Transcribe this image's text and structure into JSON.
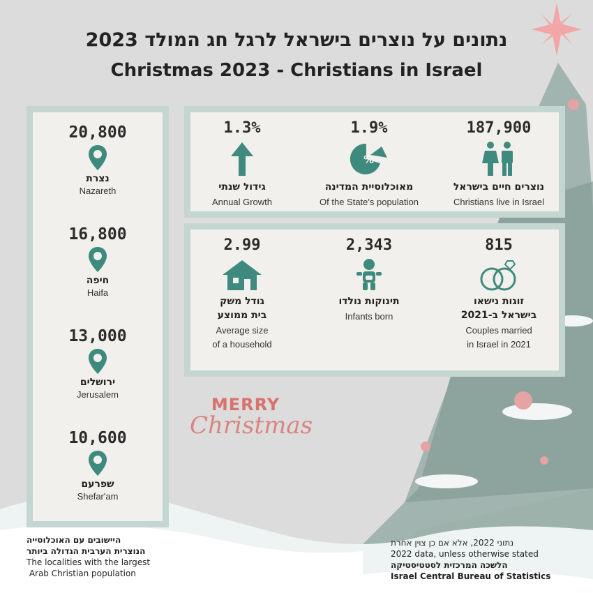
{
  "title": {
    "hebrew": "נתונים על נוצרים בישראל לרגל חג המולד 2023",
    "english": "Christmas 2023 - Christians in Israel"
  },
  "localities": [
    {
      "population": "20,800",
      "name_he": "נצרת",
      "name_en": "Nazareth"
    },
    {
      "population": "16,800",
      "name_he": "חיפה",
      "name_en": "Haifa"
    },
    {
      "population": "13,000",
      "name_he": "ירושלים",
      "name_en": "Jerusalem"
    },
    {
      "population": "10,600",
      "name_he": "שפרעם",
      "name_en": "Shefar'am"
    }
  ],
  "stats_top": [
    {
      "value": "187,900",
      "label_he": "נוצרים חיים בישראל",
      "label_en": "Christians live in Israel",
      "icon": "people-icon"
    },
    {
      "value": "1.9%",
      "label_he": "מאוכלוסיית המדינה",
      "label_en": "Of the State's population",
      "icon": "pie-percent-icon"
    },
    {
      "value": "1.3%",
      "label_he": "גידול שנתי",
      "label_en": "Annual Growth",
      "icon": "arrow-up-icon"
    }
  ],
  "stats_bottom": [
    {
      "value": "815",
      "label_he_1": "זוגות נישאו",
      "label_he_2": "בישראל ב-2021",
      "label_en_1": "Couples married",
      "label_en_2": "in Israel in 2021",
      "icon": "rings-icon"
    },
    {
      "value": "2,343",
      "label_he_1": "תינוקות נולדו",
      "label_en_1": "Infants  born",
      "icon": "baby-icon"
    },
    {
      "value": "2.99",
      "label_he_1": "גודל משק",
      "label_he_2": "בית ממוצע",
      "label_en_1": "Average size",
      "label_en_2": "of a household",
      "icon": "house-icon"
    }
  ],
  "greeting": {
    "line1": "MERRY",
    "line2": "Christmas"
  },
  "footer_left": {
    "he_1": "היישובים עם האוכלוסייה",
    "he_2": "הנוצרית הערבית הגדולה ביותר",
    "en_1": "The localities with the largest",
    "en_2": " Arab Christian population"
  },
  "footer_right": {
    "he_note": "נתוני 2022, אלא אם כן צוין אחרת",
    "en_note": "2022 data, unless otherwise stated",
    "he_source": "הלשכה המרכזית לסטטיסטיקה",
    "en_source": "Israel Central Bureau of Statistics"
  },
  "colors": {
    "teal": "#3f8a7e",
    "frame": "#c4d6d2",
    "panel": "#f1f0ec",
    "accent": "#d7736f"
  }
}
